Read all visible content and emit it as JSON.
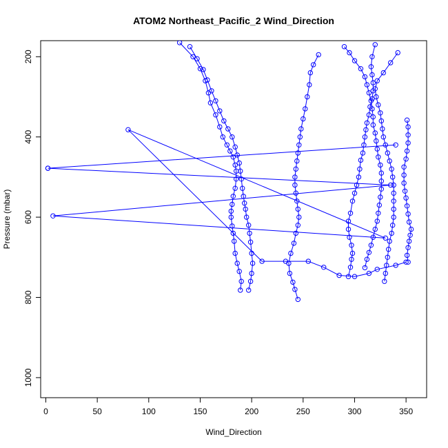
{
  "chart_data": {
    "type": "line",
    "title": "ATOM2 Northeast_Pacific_2 Wind_Direction",
    "xlabel": "Wind_Direction",
    "ylabel": "Pressure (mbar)",
    "xlim": [
      -5,
      370
    ],
    "ylim": [
      1050,
      160
    ],
    "y_reversed": true,
    "grid": false,
    "x_ticks": [
      0,
      50,
      100,
      150,
      200,
      250,
      300,
      350
    ],
    "y_ticks": [
      200,
      400,
      600,
      800,
      1000
    ],
    "series": [
      {
        "color": "#0000ff",
        "points": [
          [
            245,
            805
          ],
          [
            242,
            780
          ],
          [
            240,
            762
          ],
          [
            237,
            740
          ],
          [
            236,
            715
          ],
          [
            238,
            690
          ],
          [
            241,
            665
          ],
          [
            243,
            640
          ],
          [
            245,
            620
          ],
          [
            246,
            600
          ],
          [
            245,
            580
          ],
          [
            244,
            560
          ],
          [
            243,
            540
          ],
          [
            242,
            520
          ],
          [
            242,
            500
          ],
          [
            243,
            480
          ],
          [
            244,
            460
          ],
          [
            245,
            440
          ],
          [
            246,
            420
          ],
          [
            247,
            400
          ],
          [
            248,
            380
          ],
          [
            250,
            355
          ],
          [
            252,
            330
          ],
          [
            254,
            300
          ],
          [
            256,
            270
          ],
          [
            257,
            240
          ],
          [
            260,
            220
          ],
          [
            265,
            195
          ]
        ]
      },
      {
        "color": "#0000ff",
        "points": [
          [
            189,
            782
          ],
          [
            190,
            760
          ],
          [
            188,
            735
          ],
          [
            186,
            715
          ],
          [
            184,
            690
          ],
          [
            183,
            660
          ],
          [
            182,
            640
          ],
          [
            181,
            622
          ],
          [
            180,
            600
          ],
          [
            180,
            585
          ],
          [
            181,
            568
          ],
          [
            182,
            548
          ],
          [
            184,
            528
          ],
          [
            185,
            505
          ],
          [
            185,
            485
          ],
          [
            184,
            470
          ],
          [
            182,
            450
          ],
          [
            179,
            435
          ],
          [
            176,
            420
          ],
          [
            172,
            400
          ],
          [
            169,
            375
          ],
          [
            165,
            345
          ],
          [
            160,
            315
          ],
          [
            158,
            290
          ],
          [
            155,
            260
          ],
          [
            150,
            230
          ],
          [
            143,
            200
          ],
          [
            130,
            165
          ]
        ]
      },
      {
        "color": "#0000ff",
        "points": [
          [
            197,
            782
          ],
          [
            199,
            760
          ],
          [
            200,
            740
          ],
          [
            201,
            715
          ],
          [
            200,
            690
          ],
          [
            199,
            662
          ],
          [
            198,
            640
          ],
          [
            197,
            620
          ],
          [
            195,
            600
          ],
          [
            194,
            580
          ],
          [
            193,
            565
          ],
          [
            192,
            548
          ],
          [
            191,
            528
          ],
          [
            190,
            505
          ],
          [
            189,
            485
          ],
          [
            188,
            465
          ],
          [
            186,
            445
          ],
          [
            184,
            425
          ],
          [
            181,
            400
          ],
          [
            177,
            380
          ],
          [
            173,
            360
          ],
          [
            169,
            335
          ],
          [
            165,
            310
          ],
          [
            161,
            285
          ],
          [
            157,
            258
          ],
          [
            153,
            232
          ],
          [
            147,
            205
          ],
          [
            140,
            175
          ]
        ]
      },
      {
        "color": "#0000ff",
        "points": [
          [
            294,
            748
          ],
          [
            296,
            725
          ],
          [
            297,
            705
          ],
          [
            298,
            690
          ],
          [
            297,
            670
          ],
          [
            295,
            650
          ],
          [
            294,
            630
          ],
          [
            294,
            610
          ],
          [
            296,
            590
          ],
          [
            298,
            560
          ],
          [
            300,
            540
          ],
          [
            302,
            520
          ],
          [
            304,
            500
          ],
          [
            305,
            480
          ],
          [
            306,
            458
          ],
          [
            308,
            440
          ],
          [
            309,
            420
          ],
          [
            310,
            400
          ],
          [
            311,
            382
          ],
          [
            312,
            365
          ],
          [
            314,
            345
          ],
          [
            315,
            325
          ],
          [
            317,
            305
          ],
          [
            318,
            285
          ],
          [
            318,
            265
          ],
          [
            317,
            245
          ],
          [
            316,
            225
          ],
          [
            317,
            200
          ],
          [
            320,
            170
          ]
        ]
      },
      {
        "color": "#0000ff",
        "points": [
          [
            310,
            726
          ],
          [
            312,
            705
          ],
          [
            314,
            688
          ],
          [
            316,
            670
          ],
          [
            318,
            650
          ],
          [
            320,
            630
          ],
          [
            322,
            610
          ],
          [
            323,
            590
          ],
          [
            324,
            570
          ],
          [
            325,
            550
          ],
          [
            326,
            530
          ],
          [
            326,
            510
          ],
          [
            326,
            490
          ],
          [
            325,
            470
          ],
          [
            323,
            450
          ],
          [
            322,
            430
          ],
          [
            321,
            410
          ],
          [
            320,
            390
          ],
          [
            318,
            370
          ],
          [
            318,
            350
          ],
          [
            317,
            330
          ],
          [
            316,
            310
          ],
          [
            314,
            290
          ],
          [
            312,
            270
          ],
          [
            310,
            250
          ],
          [
            306,
            230
          ],
          [
            300,
            210
          ],
          [
            295,
            190
          ],
          [
            290,
            175
          ]
        ]
      },
      {
        "color": "#0000ff",
        "points": [
          [
            329,
            760
          ],
          [
            330,
            740
          ],
          [
            331,
            720
          ],
          [
            332,
            700
          ],
          [
            333,
            680
          ],
          [
            334,
            660
          ],
          [
            336,
            640
          ],
          [
            337,
            620
          ],
          [
            338,
            600
          ],
          [
            338,
            580
          ],
          [
            338,
            560
          ],
          [
            338,
            540
          ],
          [
            338,
            520
          ],
          [
            337,
            500
          ],
          [
            336,
            480
          ],
          [
            334,
            460
          ],
          [
            332,
            440
          ],
          [
            330,
            420
          ],
          [
            328,
            400
          ],
          [
            327,
            380
          ],
          [
            326,
            360
          ],
          [
            325,
            340
          ],
          [
            323,
            320
          ],
          [
            321,
            300
          ],
          [
            320,
            280
          ],
          [
            322,
            260
          ],
          [
            328,
            240
          ],
          [
            335,
            215
          ],
          [
            342,
            190
          ]
        ]
      },
      {
        "color": "#0000ff",
        "points": [
          [
            352,
            712
          ],
          [
            351,
            695
          ],
          [
            352,
            676
          ],
          [
            353,
            660
          ],
          [
            354,
            645
          ],
          [
            355,
            630
          ],
          [
            353,
            612
          ],
          [
            352,
            592
          ],
          [
            351,
            572
          ],
          [
            350,
            552
          ],
          [
            349,
            535
          ],
          [
            348,
            515
          ],
          [
            348,
            495
          ],
          [
            348,
            475
          ],
          [
            350,
            455
          ],
          [
            351,
            435
          ],
          [
            352,
            415
          ],
          [
            352,
            395
          ],
          [
            352,
            375
          ],
          [
            351,
            358
          ]
        ]
      },
      {
        "color": "#0000ff",
        "points": [
          [
            2,
            478
          ],
          [
            340,
            420
          ],
          [
            2,
            478
          ],
          [
            335,
            520
          ],
          [
            7,
            597
          ],
          [
            330,
            652
          ],
          [
            80,
            382
          ],
          [
            210,
            710
          ],
          [
            233,
            710
          ],
          [
            255,
            710
          ],
          [
            270,
            725
          ],
          [
            285,
            745
          ],
          [
            300,
            748
          ],
          [
            314,
            740
          ],
          [
            322,
            730
          ],
          [
            340,
            720
          ],
          [
            350,
            712
          ]
        ]
      }
    ]
  }
}
